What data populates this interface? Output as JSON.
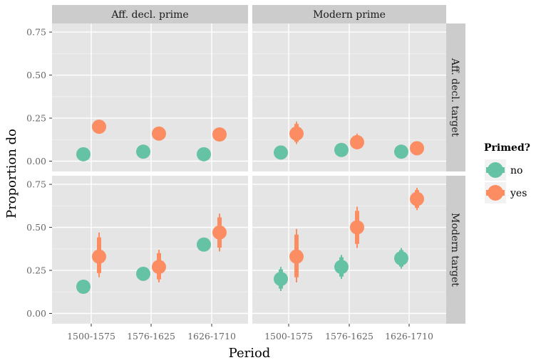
{
  "chart_data": {
    "type": "scatter",
    "xlabel": "Period",
    "ylabel": "Proportion do",
    "categories": [
      "1500-1575",
      "1576-1625",
      "1626-1710"
    ],
    "yticks": [
      "0.00",
      "0.25",
      "0.50",
      "0.75"
    ],
    "ylim": [
      -0.06,
      0.8
    ],
    "grid": true,
    "col_facets": [
      "Aff. decl. prime",
      "Modern prime"
    ],
    "row_facets": [
      "Aff. decl. target",
      "Modern target"
    ],
    "legend": {
      "title": "Primed?",
      "placement": "right",
      "entries": [
        {
          "label": "no",
          "color": "#66c2a5"
        },
        {
          "label": "yes",
          "color": "#fc8d62"
        }
      ]
    },
    "series": [
      {
        "name": "no",
        "color": "#66c2a5",
        "panels": [
          [
            {
              "x": "1500-1575",
              "y": 0.04,
              "lo": 0.03,
              "hi": 0.05
            },
            {
              "x": "1576-1625",
              "y": 0.055,
              "lo": 0.045,
              "hi": 0.065
            },
            {
              "x": "1626-1710",
              "y": 0.04,
              "lo": 0.03,
              "hi": 0.05
            }
          ],
          [
            {
              "x": "1500-1575",
              "y": 0.05,
              "lo": 0.04,
              "hi": 0.06
            },
            {
              "x": "1576-1625",
              "y": 0.065,
              "lo": 0.055,
              "hi": 0.075
            },
            {
              "x": "1626-1710",
              "y": 0.055,
              "lo": 0.045,
              "hi": 0.065
            }
          ],
          [
            {
              "x": "1500-1575",
              "y": 0.155,
              "lo": 0.14,
              "hi": 0.17
            },
            {
              "x": "1576-1625",
              "y": 0.23,
              "lo": 0.215,
              "hi": 0.245
            },
            {
              "x": "1626-1710",
              "y": 0.4,
              "lo": 0.385,
              "hi": 0.415
            }
          ],
          [
            {
              "x": "1500-1575",
              "y": 0.2,
              "lo": 0.13,
              "hi": 0.27
            },
            {
              "x": "1576-1625",
              "y": 0.27,
              "lo": 0.2,
              "hi": 0.34
            },
            {
              "x": "1626-1710",
              "y": 0.32,
              "lo": 0.26,
              "hi": 0.38
            }
          ]
        ]
      },
      {
        "name": "yes",
        "color": "#fc8d62",
        "panels": [
          [
            {
              "x": "1500-1575",
              "y": 0.2,
              "lo": 0.18,
              "hi": 0.23
            },
            {
              "x": "1576-1625",
              "y": 0.16,
              "lo": 0.145,
              "hi": 0.175
            },
            {
              "x": "1626-1710",
              "y": 0.155,
              "lo": 0.14,
              "hi": 0.17
            }
          ],
          [
            {
              "x": "1500-1575",
              "y": 0.16,
              "lo": 0.1,
              "hi": 0.23
            },
            {
              "x": "1576-1625",
              "y": 0.11,
              "lo": 0.07,
              "hi": 0.16
            },
            {
              "x": "1626-1710",
              "y": 0.075,
              "lo": 0.06,
              "hi": 0.09
            }
          ],
          [
            {
              "x": "1500-1575",
              "y": 0.33,
              "lo": 0.21,
              "hi": 0.47
            },
            {
              "x": "1576-1625",
              "y": 0.27,
              "lo": 0.18,
              "hi": 0.37
            },
            {
              "x": "1626-1710",
              "y": 0.47,
              "lo": 0.36,
              "hi": 0.58
            }
          ],
          [
            {
              "x": "1500-1575",
              "y": 0.33,
              "lo": 0.18,
              "hi": 0.49
            },
            {
              "x": "1576-1625",
              "y": 0.5,
              "lo": 0.38,
              "hi": 0.62
            },
            {
              "x": "1626-1710",
              "y": 0.665,
              "lo": 0.6,
              "hi": 0.73
            }
          ]
        ]
      }
    ]
  }
}
